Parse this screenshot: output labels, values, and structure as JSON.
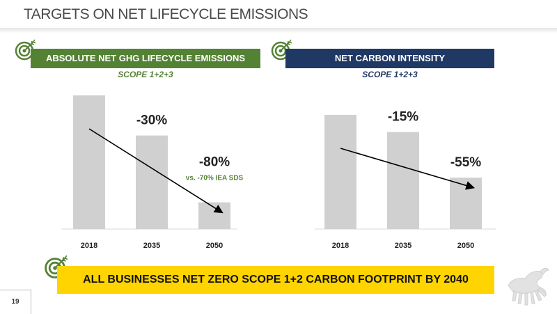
{
  "page_title": "TARGETS ON NET LIFECYCLE EMISSIONS",
  "panels": [
    {
      "header": "ABSOLUTE NET GHG LIFECYCLE EMISSIONS",
      "scope": "SCOPE 1+2+3"
    },
    {
      "header": "NET CARBON INTENSITY",
      "scope": "SCOPE 1+2+3"
    }
  ],
  "chart_data": [
    {
      "type": "bar",
      "title": "ABSOLUTE NET GHG LIFECYCLE EMISSIONS",
      "categories": [
        "2018",
        "2035",
        "2050"
      ],
      "values": [
        100,
        70,
        20
      ],
      "ylim": [
        0,
        100
      ],
      "bar_labels": [
        "",
        "-30%",
        "-80%"
      ],
      "annotation": "vs. -70% IEA SDS",
      "trend_arrow": true,
      "grid": false,
      "bar_color": "#d0d0d0"
    },
    {
      "type": "bar",
      "title": "NET CARBON INTENSITY",
      "categories": [
        "2018",
        "2035",
        "2050"
      ],
      "values": [
        100,
        85,
        45
      ],
      "ylim": [
        0,
        100
      ],
      "bar_labels": [
        "",
        "-15%",
        "-55%"
      ],
      "trend_arrow": true,
      "grid": false,
      "bar_color": "#d0d0d0"
    }
  ],
  "footer_banner": "ALL BUSINESSES NET ZERO SCOPE 1+2 CARBON FOOTPRINT BY 2040",
  "page_number": "19",
  "icons": [
    "target-icon",
    "six-legged-dog-logo"
  ],
  "colors": {
    "green": "#548235",
    "navy": "#203864",
    "yellow": "#ffd400",
    "bar": "#d0d0d0"
  }
}
